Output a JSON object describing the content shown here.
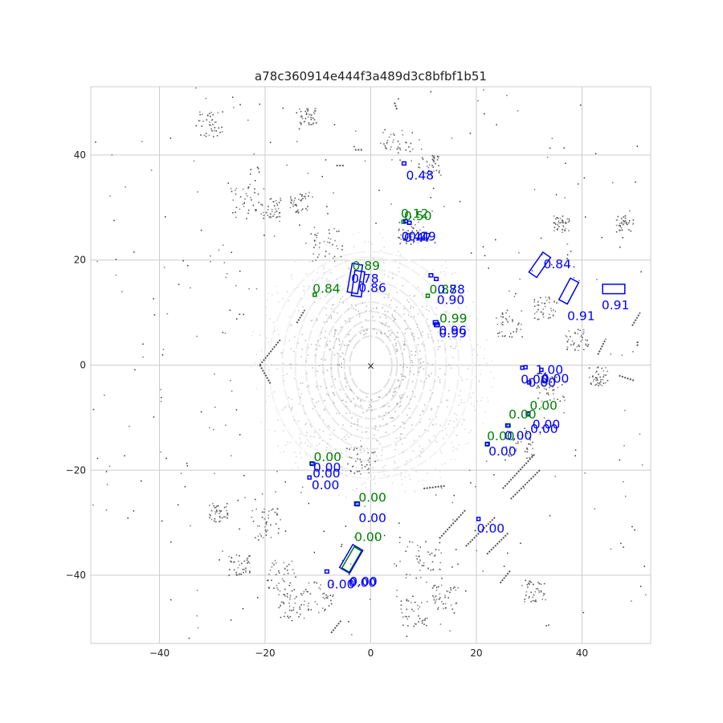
{
  "chart_data": {
    "type": "scatter",
    "title": "a78c360914e444f3a489d3c8bfbf1b51",
    "xlabel": "",
    "ylabel": "",
    "xlim": [
      -53,
      53
    ],
    "ylim": [
      -53,
      53
    ],
    "grid": true,
    "x_ticks": [
      -40,
      -20,
      0,
      20,
      40
    ],
    "y_ticks": [
      -40,
      -20,
      0,
      20,
      40
    ],
    "x_tick_labels": [
      "−40",
      "−20",
      "0",
      "20",
      "40"
    ],
    "y_tick_labels": [
      "−40",
      "−20",
      "0",
      "20",
      "40"
    ],
    "ego_marker": {
      "x": 0,
      "y": 0,
      "symbol": "×"
    },
    "colors": {
      "ground_truth": "#008000",
      "prediction": "#0000ff",
      "lidar_near": "#e6e6e6",
      "lidar_far": "#333333",
      "grid": "#cccccc"
    },
    "pred_boxes": [
      {
        "cx": 6.3,
        "cy": 38.4,
        "l": 0.7,
        "w": 0.6,
        "yaw": 0
      },
      {
        "cx": 6.6,
        "cy": 27.4,
        "l": 0.7,
        "w": 0.6,
        "yaw": 0
      },
      {
        "cx": 7.3,
        "cy": 27.1,
        "l": 0.7,
        "w": 0.6,
        "yaw": 0
      },
      {
        "cx": -3.0,
        "cy": 16.5,
        "l": 5.5,
        "w": 2.0,
        "yaw": 80
      },
      {
        "cx": -2.4,
        "cy": 15.5,
        "l": 4.8,
        "w": 1.9,
        "yaw": 82
      },
      {
        "cx": 11.4,
        "cy": 17.1,
        "l": 0.7,
        "w": 0.6,
        "yaw": 0
      },
      {
        "cx": 12.4,
        "cy": 16.4,
        "l": 0.7,
        "w": 0.6,
        "yaw": 0
      },
      {
        "cx": 12.3,
        "cy": 8.1,
        "l": 0.9,
        "w": 0.7,
        "yaw": 0
      },
      {
        "cx": 12.5,
        "cy": 7.7,
        "l": 0.9,
        "w": 0.7,
        "yaw": 0
      },
      {
        "cx": 32.0,
        "cy": 19.1,
        "l": 4.6,
        "w": 1.8,
        "yaw": 55
      },
      {
        "cx": 37.5,
        "cy": 14.1,
        "l": 4.6,
        "w": 1.8,
        "yaw": 62
      },
      {
        "cx": 46.0,
        "cy": 14.5,
        "l": 4.2,
        "w": 1.8,
        "yaw": 0
      },
      {
        "cx": 28.7,
        "cy": -0.5,
        "l": 0.6,
        "w": 0.6,
        "yaw": 0
      },
      {
        "cx": 29.3,
        "cy": -0.4,
        "l": 0.6,
        "w": 0.6,
        "yaw": 0
      },
      {
        "cx": 32.3,
        "cy": -0.9,
        "l": 0.6,
        "w": 0.6,
        "yaw": 0
      },
      {
        "cx": 30.0,
        "cy": -3.3,
        "l": 0.6,
        "w": 0.6,
        "yaw": 0
      },
      {
        "cx": 25.9,
        "cy": -11.5,
        "l": 0.7,
        "w": 0.6,
        "yaw": 0
      },
      {
        "cx": 29.8,
        "cy": -9.2,
        "l": 0.7,
        "w": 0.6,
        "yaw": 0
      },
      {
        "cx": 22.1,
        "cy": -15.0,
        "l": 0.7,
        "w": 0.6,
        "yaw": 0
      },
      {
        "cx": -11.0,
        "cy": -18.8,
        "l": 0.8,
        "w": 0.6,
        "yaw": 0
      },
      {
        "cx": -11.6,
        "cy": -21.4,
        "l": 0.6,
        "w": 0.6,
        "yaw": 0
      },
      {
        "cx": -2.6,
        "cy": -26.4,
        "l": 0.9,
        "w": 0.7,
        "yaw": 0
      },
      {
        "cx": 20.4,
        "cy": -29.3,
        "l": 0.6,
        "w": 0.6,
        "yaw": 0
      },
      {
        "cx": -3.7,
        "cy": -36.9,
        "l": 5.0,
        "w": 2.2,
        "yaw": 60
      },
      {
        "cx": -8.3,
        "cy": -39.3,
        "l": 0.7,
        "w": 0.6,
        "yaw": 0
      }
    ],
    "gt_boxes": [
      {
        "cx": 6.2,
        "cy": 27.3,
        "l": 0.6,
        "w": 0.6,
        "yaw": 0
      },
      {
        "cx": -10.6,
        "cy": 13.4,
        "l": 0.6,
        "w": 0.6,
        "yaw": 0
      },
      {
        "cx": 10.8,
        "cy": 13.2,
        "l": 0.6,
        "w": 0.6,
        "yaw": 0
      },
      {
        "cx": 12.6,
        "cy": 7.6,
        "l": 0.8,
        "w": 0.6,
        "yaw": 0
      },
      {
        "cx": 26.1,
        "cy": -11.5,
        "l": 0.6,
        "w": 0.6,
        "yaw": 0
      },
      {
        "cx": 29.8,
        "cy": -9.4,
        "l": 0.6,
        "w": 0.6,
        "yaw": 0
      },
      {
        "cx": 22.0,
        "cy": -15.1,
        "l": 0.6,
        "w": 0.6,
        "yaw": 0
      },
      {
        "cx": -11.2,
        "cy": -18.7,
        "l": 0.6,
        "w": 0.6,
        "yaw": 0
      },
      {
        "cx": -2.5,
        "cy": -26.5,
        "l": 0.7,
        "w": 0.6,
        "yaw": 0
      },
      {
        "cx": -3.6,
        "cy": -37.0,
        "l": 4.6,
        "w": 1.6,
        "yaw": 60
      }
    ],
    "gt_labels": [
      {
        "x": 5.7,
        "y": 28.1,
        "text": "0.12"
      },
      {
        "x": 6.3,
        "y": 27.6,
        "text": "0.50"
      },
      {
        "x": -3.5,
        "y": 18.1,
        "text": "0.89"
      },
      {
        "x": -11.0,
        "y": 13.8,
        "text": "0.84"
      },
      {
        "x": 11.1,
        "y": 13.6,
        "text": "0.87"
      },
      {
        "x": 13.0,
        "y": 8.1,
        "text": "0.99"
      },
      {
        "x": 26.1,
        "y": -10.2,
        "text": "0.00"
      },
      {
        "x": 30.1,
        "y": -8.5,
        "text": "0.00"
      },
      {
        "x": 22.0,
        "y": -14.3,
        "text": "0.00"
      },
      {
        "x": -10.8,
        "y": -18.3,
        "text": "0.00"
      },
      {
        "x": -2.3,
        "y": -26.0,
        "text": "0.00"
      },
      {
        "x": -3.1,
        "y": -33.5,
        "text": "0.00"
      }
    ],
    "pred_labels": [
      {
        "x": 6.7,
        "y": 35.3,
        "text": "0.48"
      },
      {
        "x": 5.8,
        "y": 23.7,
        "text": "0.44"
      },
      {
        "x": 6.3,
        "y": 23.5,
        "text": "0.47"
      },
      {
        "x": 7.1,
        "y": 23.7,
        "text": "0.19"
      },
      {
        "x": -3.7,
        "y": 15.7,
        "text": "0.78"
      },
      {
        "x": -2.3,
        "y": 13.9,
        "text": "0.86"
      },
      {
        "x": 12.6,
        "y": 13.6,
        "text": "0.88"
      },
      {
        "x": 12.5,
        "y": 11.6,
        "text": "0.90"
      },
      {
        "x": 12.9,
        "y": 5.8,
        "text": "0.96"
      },
      {
        "x": 12.9,
        "y": 5.3,
        "text": "0.99"
      },
      {
        "x": 32.7,
        "y": 18.4,
        "text": "0.84"
      },
      {
        "x": 37.2,
        "y": 8.6,
        "text": "0.91"
      },
      {
        "x": 43.7,
        "y": 10.6,
        "text": "0.91"
      },
      {
        "x": 31.2,
        "y": -1.7,
        "text": "1.00"
      },
      {
        "x": 28.4,
        "y": -3.5,
        "text": "0.00"
      },
      {
        "x": 29.8,
        "y": -4.1,
        "text": "0.00"
      },
      {
        "x": 32.3,
        "y": -3.4,
        "text": "0.00"
      },
      {
        "x": 25.3,
        "y": -14.2,
        "text": "0.00"
      },
      {
        "x": 30.6,
        "y": -12.1,
        "text": "0.00"
      },
      {
        "x": 30.2,
        "y": -12.9,
        "text": "0.00"
      },
      {
        "x": 22.3,
        "y": -17.2,
        "text": "0.00"
      },
      {
        "x": -10.9,
        "y": -20.3,
        "text": "0.00"
      },
      {
        "x": -11.0,
        "y": -21.4,
        "text": "0.00"
      },
      {
        "x": -11.2,
        "y": -23.6,
        "text": "0.00"
      },
      {
        "x": -2.3,
        "y": -29.9,
        "text": "0.00"
      },
      {
        "x": 20.1,
        "y": -31.9,
        "text": "0.00"
      },
      {
        "x": -8.3,
        "y": -42.5,
        "text": "0.00"
      },
      {
        "x": -4.2,
        "y": -42.2,
        "text": "0.00"
      },
      {
        "x": -4.0,
        "y": -42.0,
        "text": "0.00"
      }
    ],
    "lidar_rings": [
      {
        "rx": 4.0,
        "ry": 5.5
      },
      {
        "rx": 5.0,
        "ry": 7.0
      },
      {
        "rx": 6.2,
        "ry": 8.5
      },
      {
        "rx": 7.5,
        "ry": 10.2
      },
      {
        "rx": 9.0,
        "ry": 12.0
      },
      {
        "rx": 10.5,
        "ry": 14.0
      },
      {
        "rx": 12.3,
        "ry": 16.0
      },
      {
        "rx": 14.3,
        "ry": 18.3
      },
      {
        "rx": 16.7,
        "ry": 20.5
      },
      {
        "rx": 19.3,
        "ry": 21.6
      }
    ],
    "lidar_segments": [
      {
        "x1": -21.0,
        "y1": 0.0,
        "x2": -17.0,
        "y2": 5.0
      },
      {
        "x1": -21.0,
        "y1": 0.0,
        "x2": -19.0,
        "y2": -3.5
      },
      {
        "x1": -14.0,
        "y1": 8.0,
        "x2": -12.5,
        "y2": 10.5
      },
      {
        "x1": 10.0,
        "y1": -23.5,
        "x2": 14.0,
        "y2": -23.0
      },
      {
        "x1": 13.0,
        "y1": -33.0,
        "x2": 18.0,
        "y2": -27.5
      },
      {
        "x1": 18.0,
        "y1": -34.5,
        "x2": 23.5,
        "y2": -29.0
      },
      {
        "x1": 22.0,
        "y1": -36.0,
        "x2": 26.0,
        "y2": -32.0
      },
      {
        "x1": 25.0,
        "y1": -23.5,
        "x2": 31.0,
        "y2": -17.0
      },
      {
        "x1": 26.5,
        "y1": -25.5,
        "x2": 32.0,
        "y2": -20.0
      },
      {
        "x1": 24.5,
        "y1": -41.5,
        "x2": 26.5,
        "y2": -39.0
      },
      {
        "x1": 43.0,
        "y1": 2.0,
        "x2": 44.5,
        "y2": 5.0
      },
      {
        "x1": 47.0,
        "y1": -2.0,
        "x2": 50.0,
        "y2": -3.0
      },
      {
        "x1": 49.5,
        "y1": 7.5,
        "x2": 51.0,
        "y2": 10.0
      },
      {
        "x1": 50.5,
        "y1": 4.5,
        "x2": 50.5,
        "y2": 3.5
      },
      {
        "x1": 4.5,
        "y1": 50.0,
        "x2": 5.0,
        "y2": 48.5
      },
      {
        "x1": -7.5,
        "y1": -51.0,
        "x2": -5.5,
        "y2": -48.5
      },
      {
        "x1": -3.0,
        "y1": 41.0,
        "x2": -1.5,
        "y2": 41.0
      },
      {
        "x1": -6.5,
        "y1": 38.0,
        "x2": -5.0,
        "y2": 38.0
      }
    ],
    "lidar_clusters": [
      {
        "x": -23.5,
        "y": 31.0,
        "r": 3.2
      },
      {
        "x": -19.0,
        "y": 30.0,
        "r": 2.0
      },
      {
        "x": -8.5,
        "y": 23.0,
        "r": 3.2
      },
      {
        "x": 7.5,
        "y": 25.5,
        "r": 2.4
      },
      {
        "x": 11.0,
        "y": 38.0,
        "r": 2.2
      },
      {
        "x": 5.0,
        "y": 42.0,
        "r": 3.0
      },
      {
        "x": -13.5,
        "y": 31.0,
        "r": 2.0
      },
      {
        "x": -12.0,
        "y": 47.5,
        "r": 1.6
      },
      {
        "x": 26.0,
        "y": 8.0,
        "r": 2.6
      },
      {
        "x": 33.0,
        "y": 11.0,
        "r": 2.2
      },
      {
        "x": 39.0,
        "y": 5.0,
        "r": 2.2
      },
      {
        "x": 34.0,
        "y": -4.0,
        "r": 2.8
      },
      {
        "x": 28.0,
        "y": -15.0,
        "r": 2.6
      },
      {
        "x": -20.0,
        "y": -30.0,
        "r": 2.8
      },
      {
        "x": -17.0,
        "y": -40.0,
        "r": 3.0
      },
      {
        "x": -10.0,
        "y": -44.0,
        "r": 3.0
      },
      {
        "x": -15.0,
        "y": -46.0,
        "r": 2.6
      },
      {
        "x": 10.0,
        "y": -37.0,
        "r": 3.5
      },
      {
        "x": 8.0,
        "y": -47.0,
        "r": 2.6
      },
      {
        "x": 14.0,
        "y": -44.0,
        "r": 2.4
      },
      {
        "x": -30.5,
        "y": 46.0,
        "r": 2.4
      },
      {
        "x": -29.0,
        "y": -28.0,
        "r": 1.8
      },
      {
        "x": -25.0,
        "y": -38.0,
        "r": 2.0
      },
      {
        "x": 43.0,
        "y": -2.0,
        "r": 1.8
      },
      {
        "x": 36.0,
        "y": 27.0,
        "r": 1.6
      },
      {
        "x": 48.0,
        "y": 27.0,
        "r": 1.6
      },
      {
        "x": 31.0,
        "y": -43.0,
        "r": 2.0
      },
      {
        "x": -2.0,
        "y": -18.0,
        "r": 2.8
      }
    ]
  }
}
